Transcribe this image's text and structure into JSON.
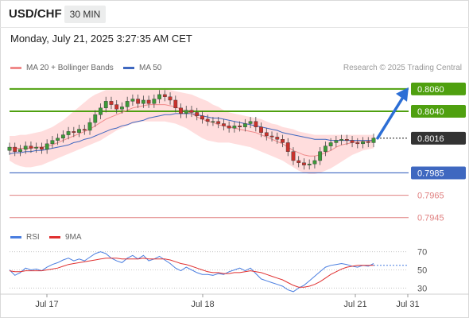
{
  "header": {
    "symbol": "USD/CHF",
    "timeframe": "30 MIN"
  },
  "datetime": "Monday, July 21, 2025 3:27:35 AM CET",
  "credit": "Research © 2025 Trading Central",
  "colors": {
    "resistance_green": "#4fa00f",
    "current_line": "#3f68c0",
    "support_red": "#e08080",
    "bollinger_fill": "#ffd2d2",
    "ma20": "#f08a8a",
    "ma50": "#3f68c0",
    "arrow": "#2c6ed5",
    "candle_up": "#3c9a38",
    "candle_down": "#c8322c",
    "rsi_line": "#4a7ee0",
    "rsi_ma": "#e03030"
  },
  "chart_data": [
    {
      "type": "line",
      "title": "",
      "legend": [
        {
          "name": "MA 20 + Bollinger Bands",
          "color": "#f08a8a"
        },
        {
          "name": "MA 50",
          "color": "#3f68c0"
        }
      ],
      "legend_placement": "top-left",
      "x_labels": [
        "Jul 17",
        "Jul 18",
        "Jul 21",
        "Jul 31"
      ],
      "price_levels": [
        {
          "value": 0.806,
          "label": "0.8060",
          "kind": "resistance"
        },
        {
          "value": 0.804,
          "label": "0.8040",
          "kind": "resistance"
        },
        {
          "value": 0.8016,
          "label": "0.8016",
          "kind": "current"
        },
        {
          "value": 0.7985,
          "label": "0.7985",
          "kind": "pivot"
        },
        {
          "value": 0.7965,
          "label": "0.7965",
          "kind": "support"
        },
        {
          "value": 0.7945,
          "label": "0.7945",
          "kind": "support"
        }
      ],
      "ylim": [
        0.7937,
        0.8072
      ],
      "price_series": [
        0.8008,
        0.8004,
        0.8006,
        0.8009,
        0.8007,
        0.8008,
        0.8006,
        0.8011,
        0.8014,
        0.8016,
        0.8019,
        0.8022,
        0.8021,
        0.8024,
        0.8023,
        0.803,
        0.8037,
        0.8043,
        0.8049,
        0.8046,
        0.8042,
        0.8044,
        0.8049,
        0.8051,
        0.8047,
        0.805,
        0.8047,
        0.8051,
        0.8055,
        0.8053,
        0.805,
        0.8043,
        0.8038,
        0.8041,
        0.8039,
        0.8036,
        0.8033,
        0.8031,
        0.8031,
        0.8029,
        0.8027,
        0.8025,
        0.8027,
        0.8026,
        0.8029,
        0.8031,
        0.8026,
        0.8021,
        0.8018,
        0.8017,
        0.8015,
        0.8012,
        0.8004,
        0.7996,
        0.7994,
        0.7992,
        0.7993,
        0.7996,
        0.8004,
        0.8009,
        0.8012,
        0.8014,
        0.8015,
        0.8014,
        0.8012,
        0.8011,
        0.8013,
        0.8012,
        0.8016
      ],
      "ma20": [
        0.8008,
        0.8007,
        0.8007,
        0.8007,
        0.8007,
        0.8008,
        0.8008,
        0.8009,
        0.801,
        0.8012,
        0.8014,
        0.8016,
        0.8018,
        0.802,
        0.8022,
        0.8024,
        0.8027,
        0.803,
        0.8033,
        0.8035,
        0.8037,
        0.8039,
        0.8041,
        0.8043,
        0.8044,
        0.8045,
        0.8046,
        0.8046,
        0.8046,
        0.8046,
        0.8045,
        0.8044,
        0.8042,
        0.804,
        0.8038,
        0.8035,
        0.8033,
        0.8031,
        0.803,
        0.8028,
        0.8027,
        0.8026,
        0.8025,
        0.8024,
        0.8023,
        0.8022,
        0.8021,
        0.8019,
        0.8017,
        0.8015,
        0.8013,
        0.8011,
        0.8008,
        0.8005,
        0.8003,
        0.8001,
        0.8,
        0.8,
        0.8001,
        0.8003,
        0.8005,
        0.8008,
        0.801,
        0.8011,
        0.8012,
        0.8013,
        0.8013,
        0.8013,
        0.8014
      ],
      "ma50": [
        0.8002,
        0.8003,
        0.8003,
        0.8004,
        0.8004,
        0.8005,
        0.8005,
        0.8006,
        0.8007,
        0.8008,
        0.8009,
        0.801,
        0.8012,
        0.8013,
        0.8015,
        0.8016,
        0.8018,
        0.802,
        0.8022,
        0.8024,
        0.8025,
        0.8027,
        0.8028,
        0.803,
        0.8031,
        0.8032,
        0.8034,
        0.8035,
        0.8036,
        0.8037,
        0.8037,
        0.8038,
        0.8038,
        0.8038,
        0.8038,
        0.8037,
        0.8036,
        0.8035,
        0.8034,
        0.8034,
        0.8033,
        0.8032,
        0.8031,
        0.803,
        0.8029,
        0.8028,
        0.8027,
        0.8026,
        0.8025,
        0.8024,
        0.8023,
        0.8021,
        0.802,
        0.8019,
        0.8018,
        0.8017,
        0.8016,
        0.8015,
        0.8015,
        0.8015,
        0.8014,
        0.8014,
        0.8014,
        0.8014,
        0.8014,
        0.8014,
        0.8014,
        0.8014,
        0.8014
      ],
      "bollinger_upper": [
        0.8018,
        0.8018,
        0.8019,
        0.8019,
        0.802,
        0.8021,
        0.8022,
        0.8024,
        0.8026,
        0.8029,
        0.8032,
        0.8036,
        0.804,
        0.8044,
        0.8048,
        0.8052,
        0.8055,
        0.8057,
        0.8059,
        0.8059,
        0.8059,
        0.8059,
        0.806,
        0.806,
        0.806,
        0.806,
        0.806,
        0.806,
        0.806,
        0.806,
        0.8059,
        0.8058,
        0.8057,
        0.8056,
        0.8055,
        0.8053,
        0.8051,
        0.8049,
        0.8046,
        0.8044,
        0.8041,
        0.8039,
        0.8038,
        0.8037,
        0.8036,
        0.8035,
        0.8034,
        0.8033,
        0.8031,
        0.8029,
        0.8028,
        0.8026,
        0.8025,
        0.8024,
        0.8022,
        0.8021,
        0.802,
        0.8019,
        0.8019,
        0.8019,
        0.8019,
        0.8019,
        0.8019,
        0.8019,
        0.8019,
        0.8019,
        0.8019,
        0.8019,
        0.8019
      ],
      "bollinger_lower": [
        0.7996,
        0.7993,
        0.7991,
        0.799,
        0.799,
        0.7991,
        0.7992,
        0.7994,
        0.7996,
        0.7998,
        0.8,
        0.8002,
        0.8004,
        0.8006,
        0.8008,
        0.801,
        0.8012,
        0.8014,
        0.8017,
        0.802,
        0.8023,
        0.8025,
        0.8027,
        0.8029,
        0.803,
        0.8031,
        0.8031,
        0.8031,
        0.8031,
        0.8031,
        0.803,
        0.8029,
        0.8027,
        0.8025,
        0.8022,
        0.8019,
        0.8016,
        0.8014,
        0.8013,
        0.8012,
        0.8012,
        0.8012,
        0.8011,
        0.801,
        0.8009,
        0.8008,
        0.8006,
        0.8004,
        0.8002,
        0.8,
        0.7998,
        0.7996,
        0.7993,
        0.799,
        0.7987,
        0.7985,
        0.7984,
        0.7984,
        0.7985,
        0.7987,
        0.7989,
        0.7992,
        0.7995,
        0.7998,
        0.8001,
        0.8003,
        0.8005,
        0.8006,
        0.8007
      ],
      "forecast_target": 0.806
    },
    {
      "type": "line",
      "title": "",
      "legend": [
        {
          "name": "RSI",
          "color": "#4a7ee0"
        },
        {
          "name": "9MA",
          "color": "#e03030"
        }
      ],
      "legend_placement": "top-left",
      "y_ticks": [
        70,
        50,
        30
      ],
      "ylim": [
        25,
        75
      ],
      "rsi": [
        50,
        44,
        47,
        52,
        50,
        51,
        49,
        53,
        56,
        58,
        61,
        63,
        60,
        62,
        60,
        64,
        68,
        70,
        68,
        63,
        60,
        58,
        63,
        66,
        62,
        66,
        60,
        62,
        65,
        61,
        57,
        52,
        49,
        53,
        50,
        47,
        45,
        45,
        44,
        46,
        45,
        48,
        50,
        52,
        49,
        52,
        46,
        40,
        38,
        36,
        34,
        32,
        28,
        26,
        30,
        33,
        38,
        43,
        48,
        53,
        55,
        56,
        57,
        56,
        54,
        53,
        55,
        54,
        57
      ],
      "rsi_ma": [
        49,
        48,
        48,
        49,
        49,
        49,
        49,
        50,
        51,
        52,
        54,
        56,
        57,
        58,
        59,
        60,
        61,
        62,
        63,
        63,
        63,
        62,
        62,
        62,
        62,
        63,
        62,
        62,
        62,
        62,
        61,
        59,
        57,
        56,
        54,
        52,
        50,
        48,
        47,
        47,
        46,
        46,
        47,
        47,
        48,
        49,
        48,
        47,
        45,
        43,
        41,
        39,
        36,
        33,
        31,
        31,
        32,
        34,
        37,
        41,
        45,
        48,
        51,
        53,
        54,
        55,
        55,
        55,
        55
      ],
      "rsi_forecast": 55
    }
  ]
}
